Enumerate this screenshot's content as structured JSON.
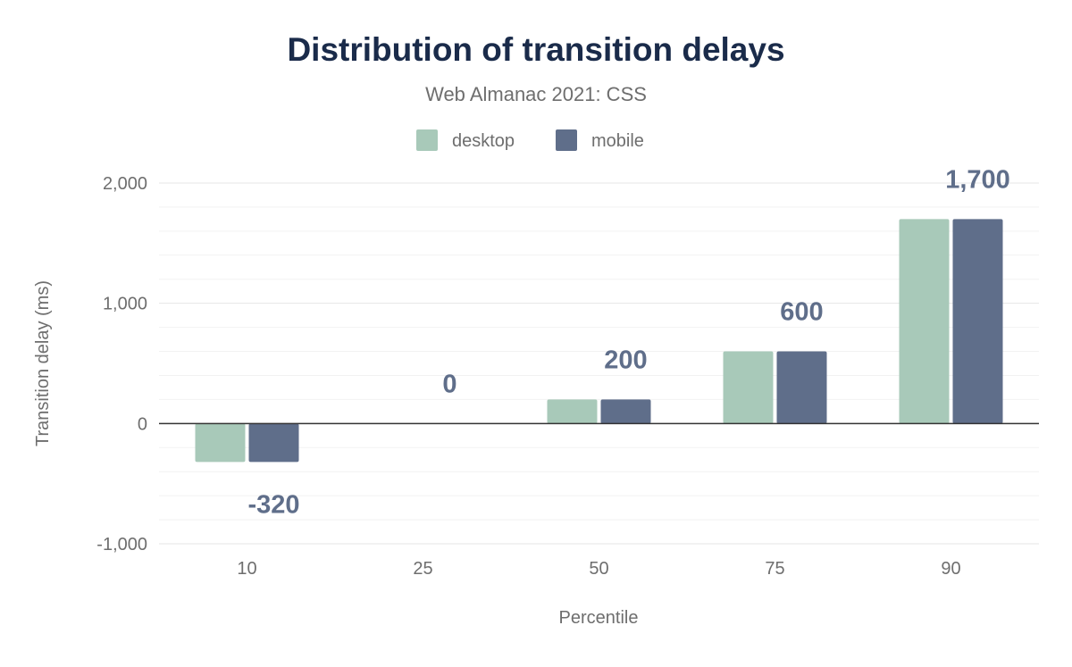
{
  "chart_data": {
    "type": "bar",
    "title": "Distribution of transition delays",
    "subtitle": "Web Almanac 2021: CSS",
    "xlabel": "Percentile",
    "ylabel": "Transition delay (ms)",
    "categories": [
      "10",
      "25",
      "50",
      "75",
      "90"
    ],
    "series": [
      {
        "name": "desktop",
        "color": "#a8c9b9",
        "values": [
          -320,
          0,
          200,
          600,
          1700
        ]
      },
      {
        "name": "mobile",
        "color": "#5f6e8a",
        "values": [
          -320,
          0,
          200,
          600,
          1700
        ]
      }
    ],
    "data_labels": [
      "-320",
      "0",
      "200",
      "600",
      "1,700"
    ],
    "ylim": [
      -1000,
      2000
    ],
    "yticks": [
      -1000,
      0,
      1000,
      2000
    ],
    "ytick_labels": [
      "-1,000",
      "0",
      "1,000",
      "2,000"
    ],
    "grid": true,
    "legend_position": "top-center",
    "colors": {
      "title": "#1a2b4a",
      "label": "#5f6e8a",
      "axis_text": "#6e6e6e"
    }
  }
}
